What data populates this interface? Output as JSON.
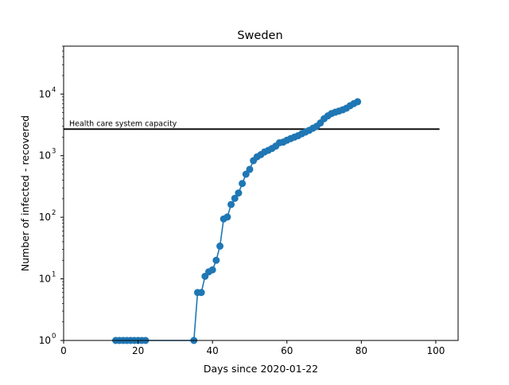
{
  "chart_data": {
    "type": "line",
    "title": "Sweden",
    "xlabel": "Days since 2020-01-22",
    "ylabel": "Number of infected - recovered",
    "xlim": [
      0,
      106
    ],
    "ylim": [
      1,
      60000
    ],
    "yscale": "log",
    "grid": false,
    "x_ticks": [
      0,
      20,
      40,
      60,
      80,
      100
    ],
    "x_tick_labels": [
      "0",
      "20",
      "40",
      "60",
      "80",
      "100"
    ],
    "y_ticks": [
      1,
      10,
      100,
      1000,
      10000
    ],
    "y_tick_labels": [
      {
        "base": "10",
        "exp": "0"
      },
      {
        "base": "10",
        "exp": "1"
      },
      {
        "base": "10",
        "exp": "2"
      },
      {
        "base": "10",
        "exp": "3"
      },
      {
        "base": "10",
        "exp": "4"
      }
    ],
    "series": [
      {
        "color": "#1f77b4",
        "marker": "circle",
        "x": [
          14,
          15,
          16,
          17,
          18,
          19,
          20,
          21,
          22,
          35,
          36,
          37,
          38,
          39,
          40,
          41,
          42,
          43,
          44,
          45,
          46,
          47,
          48,
          49,
          50,
          51,
          52,
          53,
          54,
          55,
          56,
          57,
          58,
          59,
          60,
          61,
          62,
          63,
          64,
          65,
          66,
          67,
          68,
          69,
          70,
          71,
          72,
          73,
          74,
          75,
          76,
          77,
          78,
          79
        ],
        "y": [
          1,
          1,
          1,
          1,
          1,
          1,
          1,
          1,
          1,
          1,
          6,
          6,
          11,
          13,
          14,
          20,
          34,
          94,
          101,
          161,
          203,
          248,
          353,
          500,
          599,
          830,
          960,
          1040,
          1150,
          1220,
          1310,
          1430,
          1620,
          1660,
          1780,
          1890,
          2000,
          2110,
          2270,
          2420,
          2580,
          2790,
          3000,
          3400,
          3980,
          4430,
          4830,
          5080,
          5300,
          5550,
          5900,
          6480,
          7000,
          7500
        ]
      }
    ],
    "reference_line": {
      "y": 2700,
      "x_range": [
        0,
        101
      ],
      "label": "Health care system capacity",
      "color": "#000000"
    }
  }
}
